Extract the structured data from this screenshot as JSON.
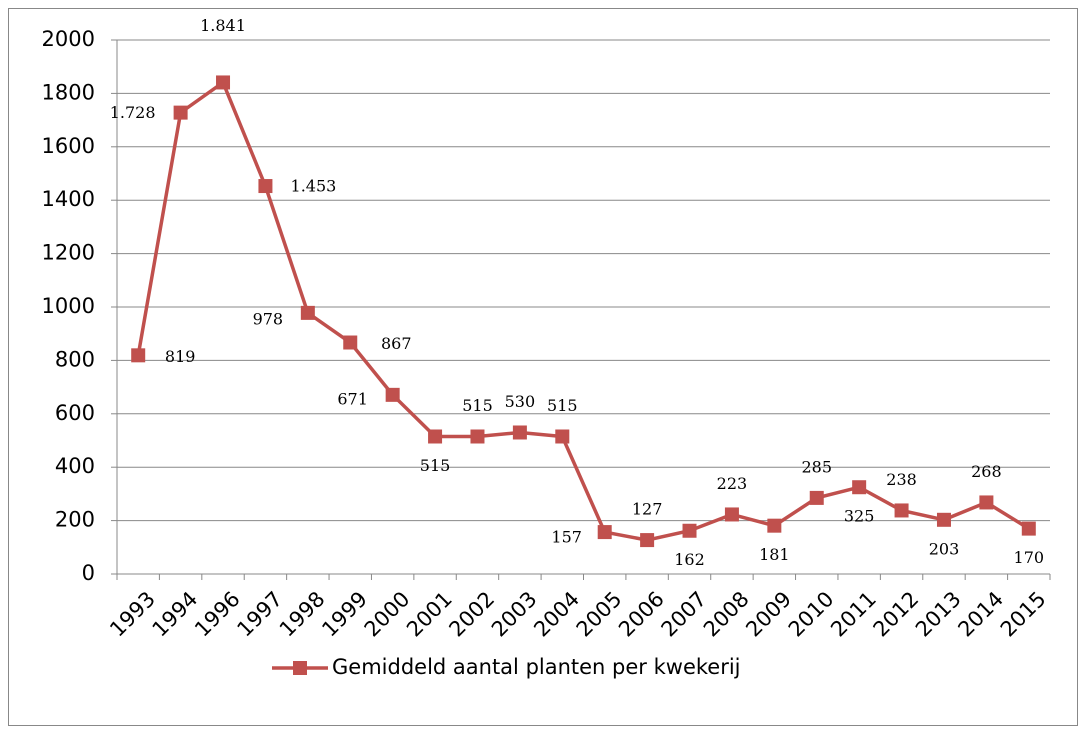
{
  "chart_data": {
    "type": "line",
    "categories": [
      "1993",
      "1994",
      "1996",
      "1997",
      "1998",
      "1999",
      "2000",
      "2001",
      "2002",
      "2003",
      "2004",
      "2005",
      "2006",
      "2007",
      "2008",
      "2009",
      "2010",
      "2011",
      "2012",
      "2013",
      "2014",
      "2015"
    ],
    "series": [
      {
        "name": "Gemiddeld aantal planten per kwekerij",
        "color": "#c0504d",
        "values": [
          819,
          1728,
          1841,
          1453,
          978,
          867,
          671,
          515,
          515,
          530,
          515,
          157,
          127,
          162,
          223,
          181,
          285,
          325,
          238,
          203,
          268,
          170
        ],
        "value_labels": [
          "819",
          "1.728",
          "1.841",
          "1.453",
          "978",
          "867",
          "671",
          "515",
          "515",
          "530",
          "515",
          "157",
          "127",
          "162",
          "223",
          "181",
          "285",
          "325",
          "238",
          "203",
          "268",
          "170"
        ]
      }
    ],
    "ylim": [
      0,
      2000
    ],
    "yticks": [
      0,
      200,
      400,
      600,
      800,
      1000,
      1200,
      1400,
      1600,
      1800,
      2000
    ],
    "grid": true,
    "legend": "bottom"
  }
}
